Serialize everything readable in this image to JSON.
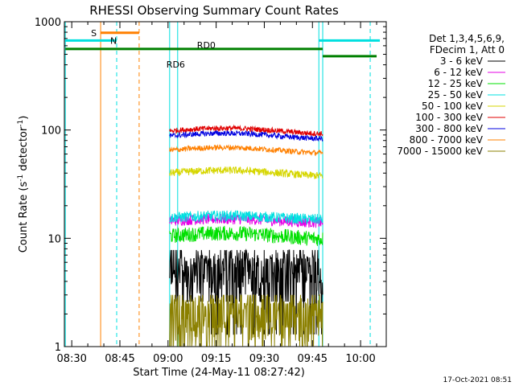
{
  "chart_data": {
    "type": "line",
    "title": "RHESSI Observing Summary Count Rates",
    "xlabel": "Start Time (24-May-11 08:27:42)",
    "ylabel_main": "Count Rate (s",
    "ylabel_sup1": "-1",
    "ylabel_mid": " detector",
    "ylabel_sup2": "-1",
    "ylabel_end": ")",
    "y_scale": "log",
    "xlim_min": [
      507.7,
      608
    ],
    "ylim": [
      1,
      1000
    ],
    "x_ticks": [
      {
        "label": "08:30",
        "min": 510
      },
      {
        "label": "08:45",
        "min": 525
      },
      {
        "label": "09:00",
        "min": 540
      },
      {
        "label": "09:15",
        "min": 555
      },
      {
        "label": "09:30",
        "min": 570
      },
      {
        "label": "09:45",
        "min": 585
      },
      {
        "label": "10:00",
        "min": 600
      }
    ],
    "y_ticks": [
      {
        "label": "1",
        "v": 1
      },
      {
        "label": "10",
        "v": 10
      },
      {
        "label": "100",
        "v": 100
      },
      {
        "label": "1000",
        "v": 1000
      }
    ],
    "legend_header": [
      "Det 1,3,4,5,6,9,",
      "FDecim 1, Att 0"
    ],
    "series": [
      {
        "name": "3 - 6 keV",
        "color": "#000000",
        "base": 5.2,
        "noise": 0.35,
        "amp": 0.05,
        "step": true
      },
      {
        "name": "6 - 12 keV",
        "color": "#e600e6",
        "base": 14.5,
        "noise": 0.1,
        "amp": 0.04
      },
      {
        "name": "12 - 25 keV",
        "color": "#00e000",
        "base": 10.5,
        "noise": 0.14,
        "amp": 0.06
      },
      {
        "name": "25 - 50 keV",
        "color": "#00e0e0",
        "base": 15.5,
        "noise": 0.1,
        "amp": 0.04
      },
      {
        "name": "50 - 100 keV",
        "color": "#d6d600",
        "base": 40,
        "noise": 0.07,
        "amp": 0.06
      },
      {
        "name": "100 - 300 keV",
        "color": "#e00000",
        "base": 98,
        "noise": 0.05,
        "amp": 0.06
      },
      {
        "name": "300 - 800 keV",
        "color": "#0000e0",
        "base": 88,
        "noise": 0.05,
        "amp": 0.06
      },
      {
        "name": "800 - 7000 keV",
        "color": "#ff8000",
        "base": 65,
        "noise": 0.05,
        "amp": 0.06
      },
      {
        "name": "7000 - 15000 keV",
        "color": "#8b8000",
        "base": 2.0,
        "noise": 0.35,
        "amp": 0.05,
        "step": true
      }
    ],
    "data_span_min": [
      540.5,
      588.2
    ],
    "vertical_markers": [
      {
        "min": 508,
        "color": "#00e0e0",
        "dash": false
      },
      {
        "min": 519,
        "color": "#ff8000",
        "dash": false
      },
      {
        "min": 524,
        "color": "#00e0e0",
        "dash": true
      },
      {
        "min": 531,
        "color": "#ff8000",
        "dash": true
      },
      {
        "min": 540.5,
        "color": "#00e0e0",
        "dash": false
      },
      {
        "min": 543,
        "color": "#00e0e0",
        "dash": false
      },
      {
        "min": 587,
        "color": "#00e0e0",
        "dash": false
      },
      {
        "min": 588.2,
        "color": "#00e0e0",
        "dash": false
      },
      {
        "min": 603,
        "color": "#00e0e0",
        "dash": true
      }
    ],
    "flag_bars": [
      {
        "label": "S",
        "color": "#ff8000",
        "x0": 519,
        "x1": 531,
        "y": 790
      },
      {
        "label": "N",
        "color": "#00e0e0",
        "x0": 508,
        "x1": 524,
        "y": 670
      },
      {
        "label": "",
        "color": "#00e0e0",
        "x0": 587,
        "x1": 606,
        "y": 670
      },
      {
        "label": "RD0",
        "color": "#008000",
        "x0": 508,
        "x1": 588.2,
        "y": 560
      },
      {
        "label": "RD6",
        "color": "#008000",
        "x0": 588.2,
        "x1": 605,
        "y": 480
      }
    ]
  },
  "footer": {
    "timestamp": "17-Oct-2021 08:51"
  }
}
